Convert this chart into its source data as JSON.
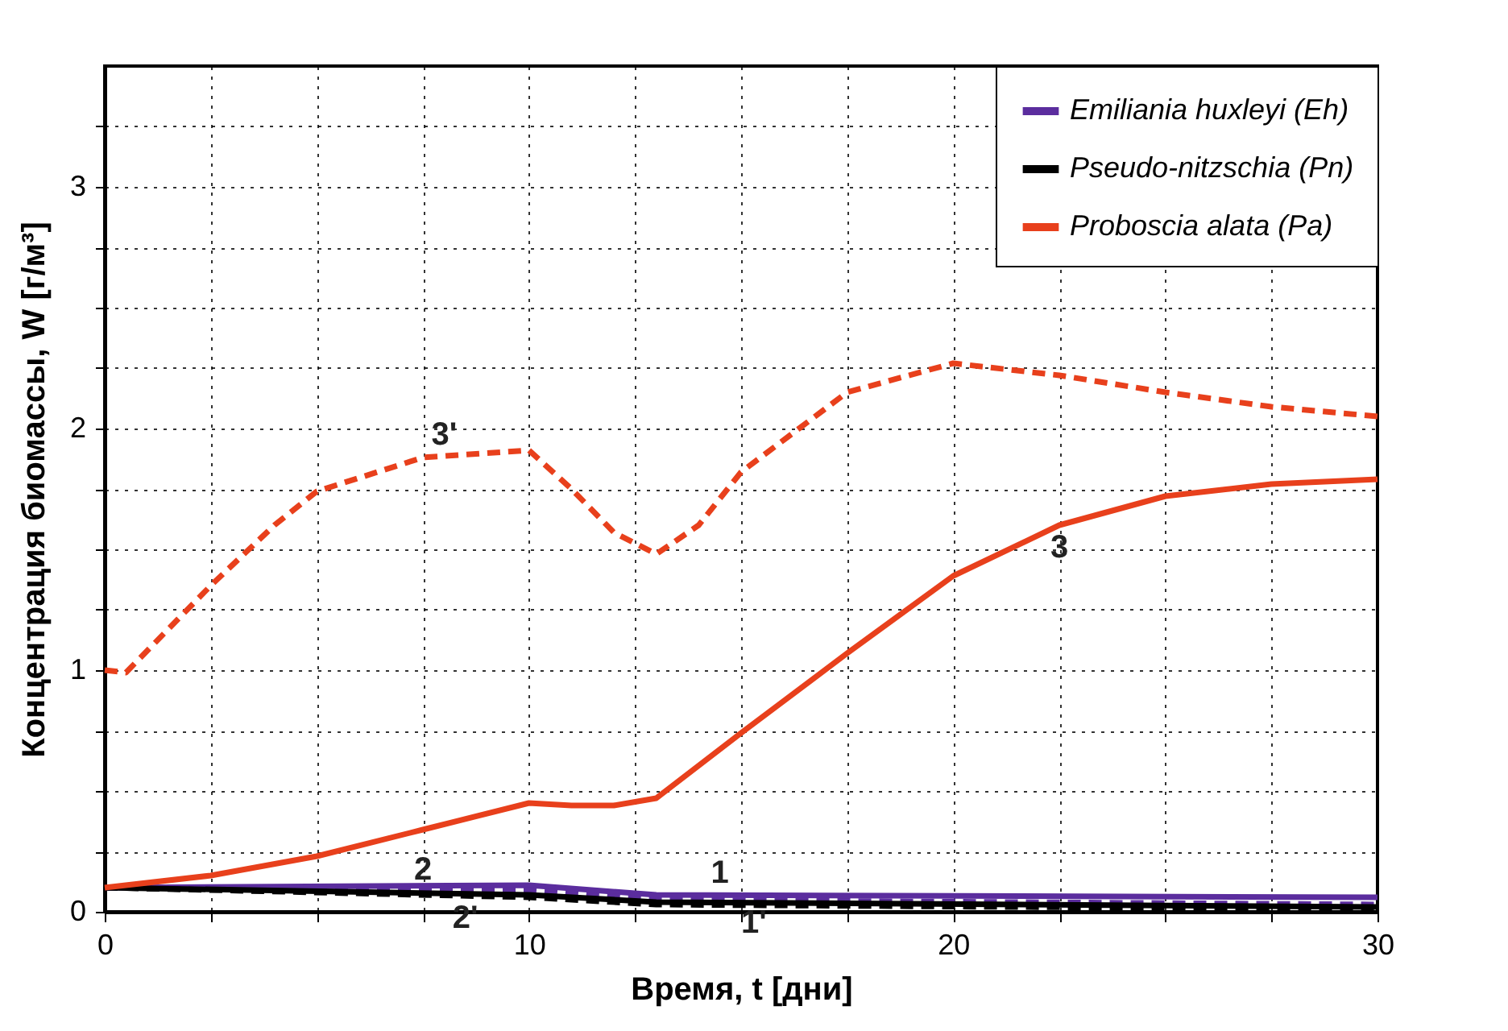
{
  "chart_data": {
    "type": "line",
    "xlabel": "Время, t  [дни]",
    "ylabel": "Концентрация биомассы, W  [г/м³]",
    "xlim": [
      0,
      30
    ],
    "ylim": [
      0,
      3.5
    ],
    "xticks": [
      0,
      {
        "value": 2.5,
        "label": null
      },
      {
        "value": 5,
        "label": null
      },
      {
        "value": 7.5,
        "label": null
      },
      10,
      {
        "value": 12.5,
        "label": null
      },
      {
        "value": 15,
        "label": null
      },
      {
        "value": 17.5,
        "label": null
      },
      20,
      {
        "value": 22.5,
        "label": null
      },
      {
        "value": 25,
        "label": null
      },
      {
        "value": 27.5,
        "label": null
      },
      30
    ],
    "yticks": [
      0,
      {
        "value": 0.25,
        "label": null
      },
      {
        "value": 0.5,
        "label": null
      },
      {
        "value": 0.75,
        "label": null
      },
      1,
      {
        "value": 1.25,
        "label": null
      },
      {
        "value": 1.5,
        "label": null
      },
      {
        "value": 1.75,
        "label": null
      },
      2,
      {
        "value": 2.25,
        "label": null
      },
      {
        "value": 2.5,
        "label": null
      },
      {
        "value": 2.75,
        "label": null
      },
      3,
      {
        "value": 3.25,
        "label": null
      }
    ],
    "grid": true,
    "legend": "top right",
    "marker": "none",
    "series": [
      {
        "name": "Emiliania huxleyi (Eh)",
        "color": "#5b2d9e",
        "line_style": "solid",
        "x": [
          0,
          10,
          13,
          30
        ],
        "values": [
          0.1,
          0.11,
          0.07,
          0.06
        ]
      },
      {
        "color": "#5b2d9e",
        "line_style": "dashed",
        "x": [
          0,
          10,
          13,
          30
        ],
        "values": [
          0.1,
          0.09,
          0.05,
          0.03
        ]
      },
      {
        "name": "Pseudo-nitzschia (Pn)",
        "color": "#000000",
        "line_style": "solid",
        "x": [
          0,
          10,
          13,
          30
        ],
        "values": [
          0.1,
          0.07,
          0.04,
          0.02
        ]
      },
      {
        "color": "#000000",
        "line_style": "dashed",
        "x": [
          0,
          10,
          13,
          30
        ],
        "values": [
          0.1,
          0.06,
          0.03,
          0.01
        ]
      },
      {
        "name": "Proboscia alata (Pa)",
        "color": "#e8401c",
        "line_style": "solid",
        "x": [
          0,
          2.5,
          5,
          7.5,
          10,
          11,
          12,
          13,
          15,
          17.5,
          20,
          22.5,
          25,
          27.5,
          30
        ],
        "values": [
          0.1,
          0.15,
          0.23,
          0.34,
          0.45,
          0.44,
          0.44,
          0.47,
          0.74,
          1.07,
          1.39,
          1.6,
          1.72,
          1.77,
          1.79
        ]
      },
      {
        "color": "#e8401c",
        "line_style": "dashed",
        "x": [
          0,
          0.5,
          2.5,
          4,
          5,
          7.5,
          10,
          11,
          12,
          13,
          14,
          15,
          17.5,
          20,
          22.5,
          25,
          27.5,
          30
        ],
        "values": [
          1.0,
          0.99,
          1.35,
          1.6,
          1.74,
          1.88,
          1.91,
          1.75,
          1.57,
          1.48,
          1.6,
          1.82,
          2.15,
          2.27,
          2.22,
          2.15,
          2.09,
          2.05
        ]
      }
    ],
    "annotations": [
      {
        "text": "1",
        "x": 14.5,
        "y": 0.068
      },
      {
        "text": "1'",
        "x": 15.3,
        "y": 0.047
      },
      {
        "text": "2",
        "x": 7.5,
        "y": 0.079
      },
      {
        "text": "2'",
        "x": 8.5,
        "y": 0.066
      },
      {
        "text": "3'",
        "x": 8,
        "y": 1.88
      },
      {
        "text": "3",
        "x": 22.5,
        "y": 1.6
      }
    ]
  }
}
